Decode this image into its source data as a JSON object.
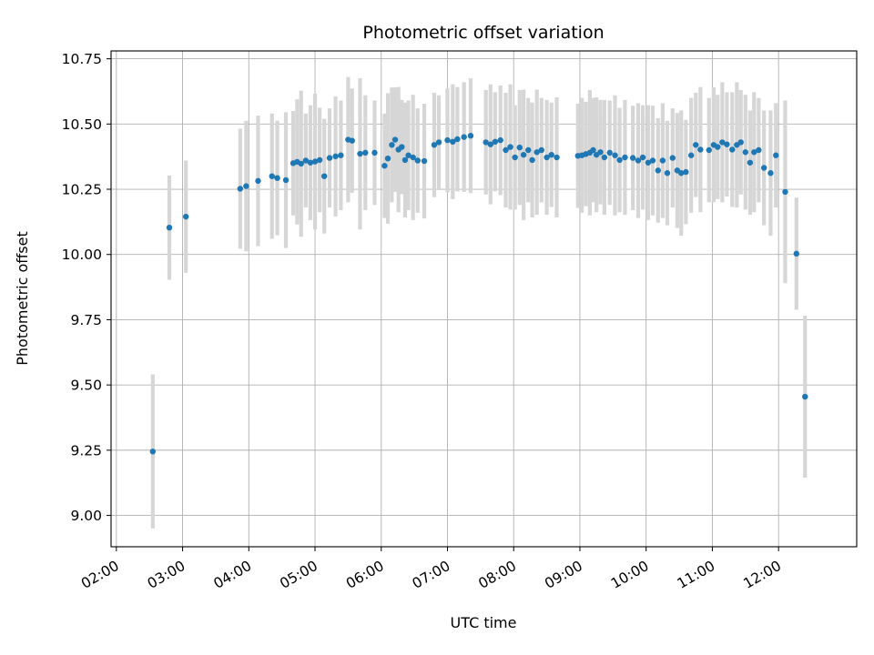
{
  "chart_data": {
    "type": "scatter",
    "title": "Photometric offset variation",
    "xlabel": "UTC time",
    "ylabel": "Photometric offset",
    "grid": true,
    "legend": "none",
    "marker_color": "#1f77b4",
    "error_color": "#d6d6d6",
    "grid_color": "#b0b0b0",
    "xlim": [
      1.92,
      13.18
    ],
    "ylim": [
      8.88,
      10.78
    ],
    "x_ticks": [
      {
        "value": 2,
        "label": "02:00"
      },
      {
        "value": 3,
        "label": "03:00"
      },
      {
        "value": 4,
        "label": "04:00"
      },
      {
        "value": 5,
        "label": "05:00"
      },
      {
        "value": 6,
        "label": "06:00"
      },
      {
        "value": 7,
        "label": "07:00"
      },
      {
        "value": 8,
        "label": "08:00"
      },
      {
        "value": 9,
        "label": "09:00"
      },
      {
        "value": 10,
        "label": "10:00"
      },
      {
        "value": 11,
        "label": "11:00"
      },
      {
        "value": 12,
        "label": "12:00"
      }
    ],
    "y_ticks": [
      {
        "value": 9.0,
        "label": "9.00"
      },
      {
        "value": 9.25,
        "label": "9.25"
      },
      {
        "value": 9.5,
        "label": "9.50"
      },
      {
        "value": 9.75,
        "label": "9.75"
      },
      {
        "value": 10.0,
        "label": "10.00"
      },
      {
        "value": 10.25,
        "label": "10.25"
      },
      {
        "value": 10.5,
        "label": "10.50"
      },
      {
        "value": 10.75,
        "label": "10.75"
      }
    ],
    "points_format": [
      "utc_hour_decimal",
      "photometric_offset",
      "yerr"
    ],
    "points": [
      [
        2.55,
        9.245,
        0.295
      ],
      [
        2.8,
        10.103,
        0.2
      ],
      [
        3.05,
        10.145,
        0.215
      ],
      [
        3.87,
        10.252,
        0.23
      ],
      [
        3.96,
        10.262,
        0.25
      ],
      [
        4.14,
        10.282,
        0.25
      ],
      [
        4.35,
        10.3,
        0.24
      ],
      [
        4.43,
        10.293,
        0.22
      ],
      [
        4.56,
        10.285,
        0.26
      ],
      [
        4.67,
        10.35,
        0.2
      ],
      [
        4.73,
        10.355,
        0.24
      ],
      [
        4.79,
        10.348,
        0.28
      ],
      [
        4.86,
        10.36,
        0.18
      ],
      [
        4.93,
        10.352,
        0.22
      ],
      [
        5.0,
        10.356,
        0.26
      ],
      [
        5.07,
        10.362,
        0.2
      ],
      [
        5.14,
        10.3,
        0.22
      ],
      [
        5.22,
        10.37,
        0.19
      ],
      [
        5.31,
        10.376,
        0.23
      ],
      [
        5.39,
        10.38,
        0.21
      ],
      [
        5.5,
        10.44,
        0.24
      ],
      [
        5.56,
        10.436,
        0.2
      ],
      [
        5.68,
        10.386,
        0.29
      ],
      [
        5.76,
        10.39,
        0.22
      ],
      [
        5.9,
        10.39,
        0.2
      ],
      [
        6.05,
        10.34,
        0.2
      ],
      [
        6.1,
        10.368,
        0.25
      ],
      [
        6.16,
        10.42,
        0.22
      ],
      [
        6.21,
        10.44,
        0.2
      ],
      [
        6.26,
        10.402,
        0.24
      ],
      [
        6.31,
        10.412,
        0.18
      ],
      [
        6.36,
        10.362,
        0.22
      ],
      [
        6.41,
        10.38,
        0.21
      ],
      [
        6.48,
        10.372,
        0.24
      ],
      [
        6.55,
        10.36,
        0.2
      ],
      [
        6.65,
        10.358,
        0.22
      ],
      [
        6.8,
        10.42,
        0.2
      ],
      [
        6.87,
        10.43,
        0.18
      ],
      [
        7.0,
        10.438,
        0.2
      ],
      [
        7.08,
        10.432,
        0.22
      ],
      [
        7.15,
        10.442,
        0.2
      ],
      [
        7.25,
        10.45,
        0.21
      ],
      [
        7.35,
        10.455,
        0.22
      ],
      [
        7.58,
        10.43,
        0.2
      ],
      [
        7.65,
        10.422,
        0.23
      ],
      [
        7.72,
        10.432,
        0.19
      ],
      [
        7.8,
        10.438,
        0.21
      ],
      [
        7.88,
        10.4,
        0.22
      ],
      [
        7.95,
        10.412,
        0.24
      ],
      [
        8.02,
        10.372,
        0.2
      ],
      [
        8.09,
        10.41,
        0.22
      ],
      [
        8.15,
        10.382,
        0.25
      ],
      [
        8.22,
        10.4,
        0.2
      ],
      [
        8.28,
        10.362,
        0.22
      ],
      [
        8.35,
        10.392,
        0.24
      ],
      [
        8.42,
        10.4,
        0.2
      ],
      [
        8.5,
        10.372,
        0.22
      ],
      [
        8.57,
        10.382,
        0.2
      ],
      [
        8.65,
        10.372,
        0.23
      ],
      [
        8.97,
        10.378,
        0.2
      ],
      [
        9.03,
        10.38,
        0.22
      ],
      [
        9.09,
        10.385,
        0.2
      ],
      [
        9.15,
        10.39,
        0.24
      ],
      [
        9.2,
        10.4,
        0.2
      ],
      [
        9.25,
        10.382,
        0.22
      ],
      [
        9.31,
        10.392,
        0.2
      ],
      [
        9.37,
        10.372,
        0.22
      ],
      [
        9.45,
        10.39,
        0.2
      ],
      [
        9.53,
        10.38,
        0.23
      ],
      [
        9.6,
        10.362,
        0.2
      ],
      [
        9.68,
        10.372,
        0.22
      ],
      [
        9.8,
        10.37,
        0.2
      ],
      [
        9.88,
        10.36,
        0.22
      ],
      [
        9.95,
        10.372,
        0.2
      ],
      [
        10.03,
        10.352,
        0.22
      ],
      [
        10.1,
        10.36,
        0.21
      ],
      [
        10.18,
        10.322,
        0.2
      ],
      [
        10.25,
        10.36,
        0.22
      ],
      [
        10.32,
        10.312,
        0.2
      ],
      [
        10.4,
        10.37,
        0.19
      ],
      [
        10.47,
        10.322,
        0.22
      ],
      [
        10.53,
        10.312,
        0.24
      ],
      [
        10.6,
        10.316,
        0.2
      ],
      [
        10.68,
        10.38,
        0.22
      ],
      [
        10.75,
        10.42,
        0.2
      ],
      [
        10.82,
        10.402,
        0.24
      ],
      [
        10.95,
        10.4,
        0.2
      ],
      [
        11.02,
        10.42,
        0.22
      ],
      [
        11.08,
        10.412,
        0.2
      ],
      [
        11.15,
        10.43,
        0.23
      ],
      [
        11.22,
        10.422,
        0.2
      ],
      [
        11.3,
        10.402,
        0.22
      ],
      [
        11.37,
        10.42,
        0.24
      ],
      [
        11.43,
        10.43,
        0.2
      ],
      [
        11.5,
        10.392,
        0.22
      ],
      [
        11.57,
        10.352,
        0.2
      ],
      [
        11.63,
        10.392,
        0.23
      ],
      [
        11.7,
        10.4,
        0.2
      ],
      [
        11.78,
        10.332,
        0.22
      ],
      [
        11.88,
        10.312,
        0.24
      ],
      [
        11.96,
        10.38,
        0.2
      ],
      [
        12.1,
        10.24,
        0.35
      ],
      [
        12.27,
        10.003,
        0.215
      ],
      [
        12.4,
        9.455,
        0.31
      ]
    ]
  }
}
